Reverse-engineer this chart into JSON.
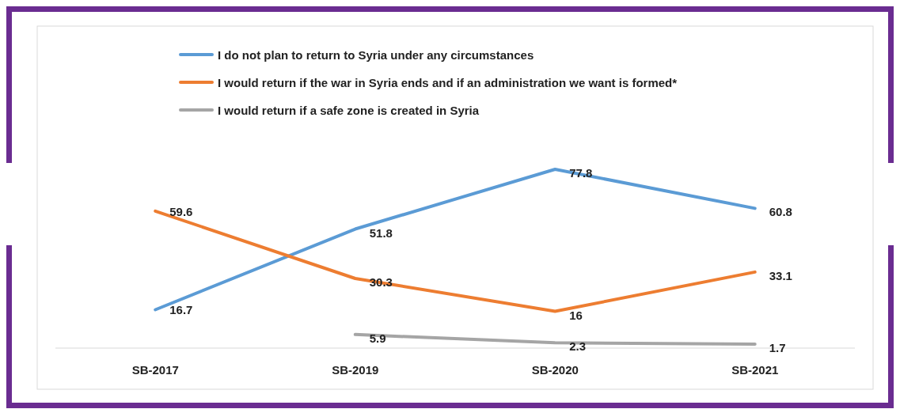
{
  "chart_data": {
    "type": "line",
    "categories": [
      "SB-2017",
      "SB-2019",
      "SB-2020",
      "SB-2021"
    ],
    "data_labels": true,
    "legend": "top left",
    "marker": "none",
    "line_style": "solid",
    "series": [
      {
        "name": "I do not plan to return to Syria under any circumstances",
        "color": "#5b9bd5",
        "values": [
          16.7,
          51.8,
          77.8,
          60.8
        ]
      },
      {
        "name": "I would return if the war in Syria ends and if an administration we want is formed*",
        "color": "#ed7d31",
        "values": [
          59.6,
          30.3,
          16,
          33.1
        ]
      },
      {
        "name": "I would return if a safe zone is created in Syria",
        "color": "#a5a5a5",
        "values": [
          null,
          5.9,
          2.3,
          1.7
        ]
      }
    ]
  }
}
